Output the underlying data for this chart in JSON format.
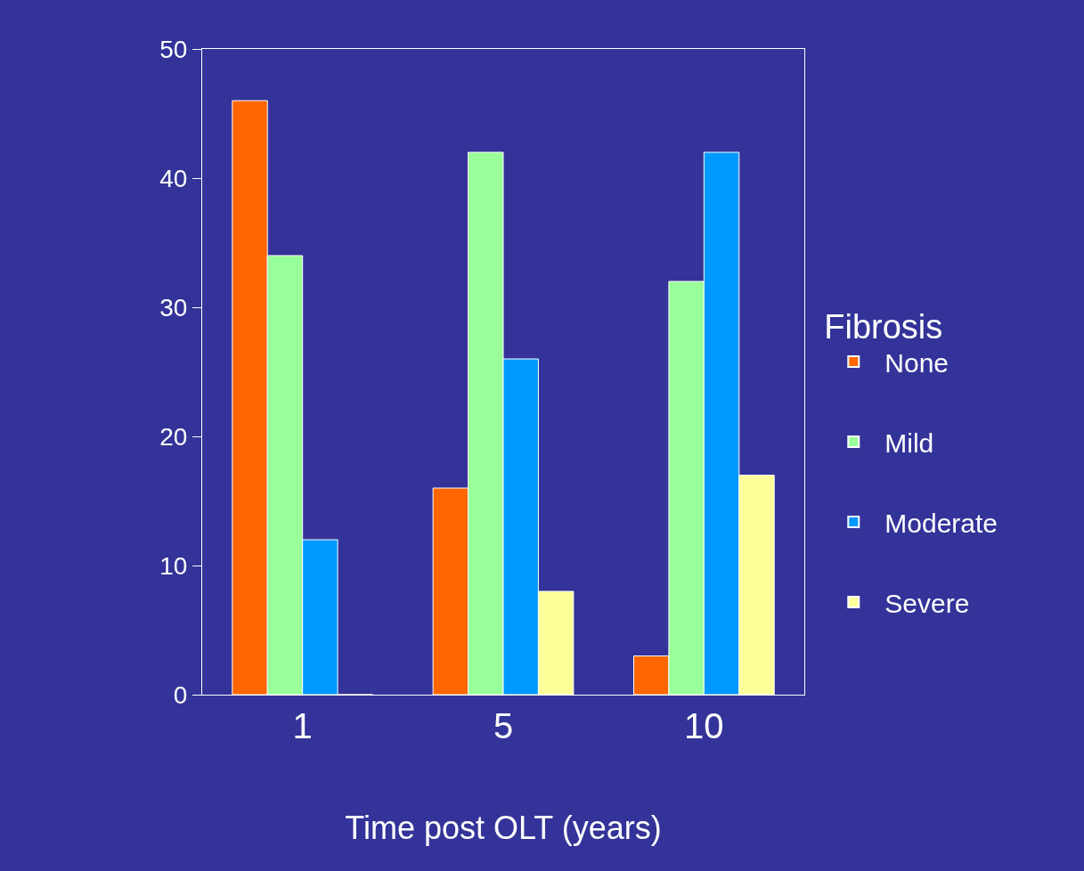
{
  "chart_data": {
    "type": "bar",
    "xlabel": "Time post OLT (years)",
    "legend_title": "Fibrosis",
    "legend": "right",
    "grid": false,
    "categories": [
      "1",
      "5",
      "10"
    ],
    "series": [
      {
        "name": "None",
        "color": "#ff6600",
        "values": [
          46,
          16,
          3
        ]
      },
      {
        "name": "Mild",
        "color": "#99ff99",
        "values": [
          34,
          42,
          32
        ]
      },
      {
        "name": "Moderate",
        "color": "#0099ff",
        "values": [
          12,
          26,
          42
        ]
      },
      {
        "name": "Severe",
        "color": "#ffff99",
        "values": [
          0,
          8,
          17
        ]
      }
    ],
    "ylim": [
      0,
      50
    ],
    "yticks": [
      0,
      10,
      20,
      30,
      40,
      50
    ]
  }
}
